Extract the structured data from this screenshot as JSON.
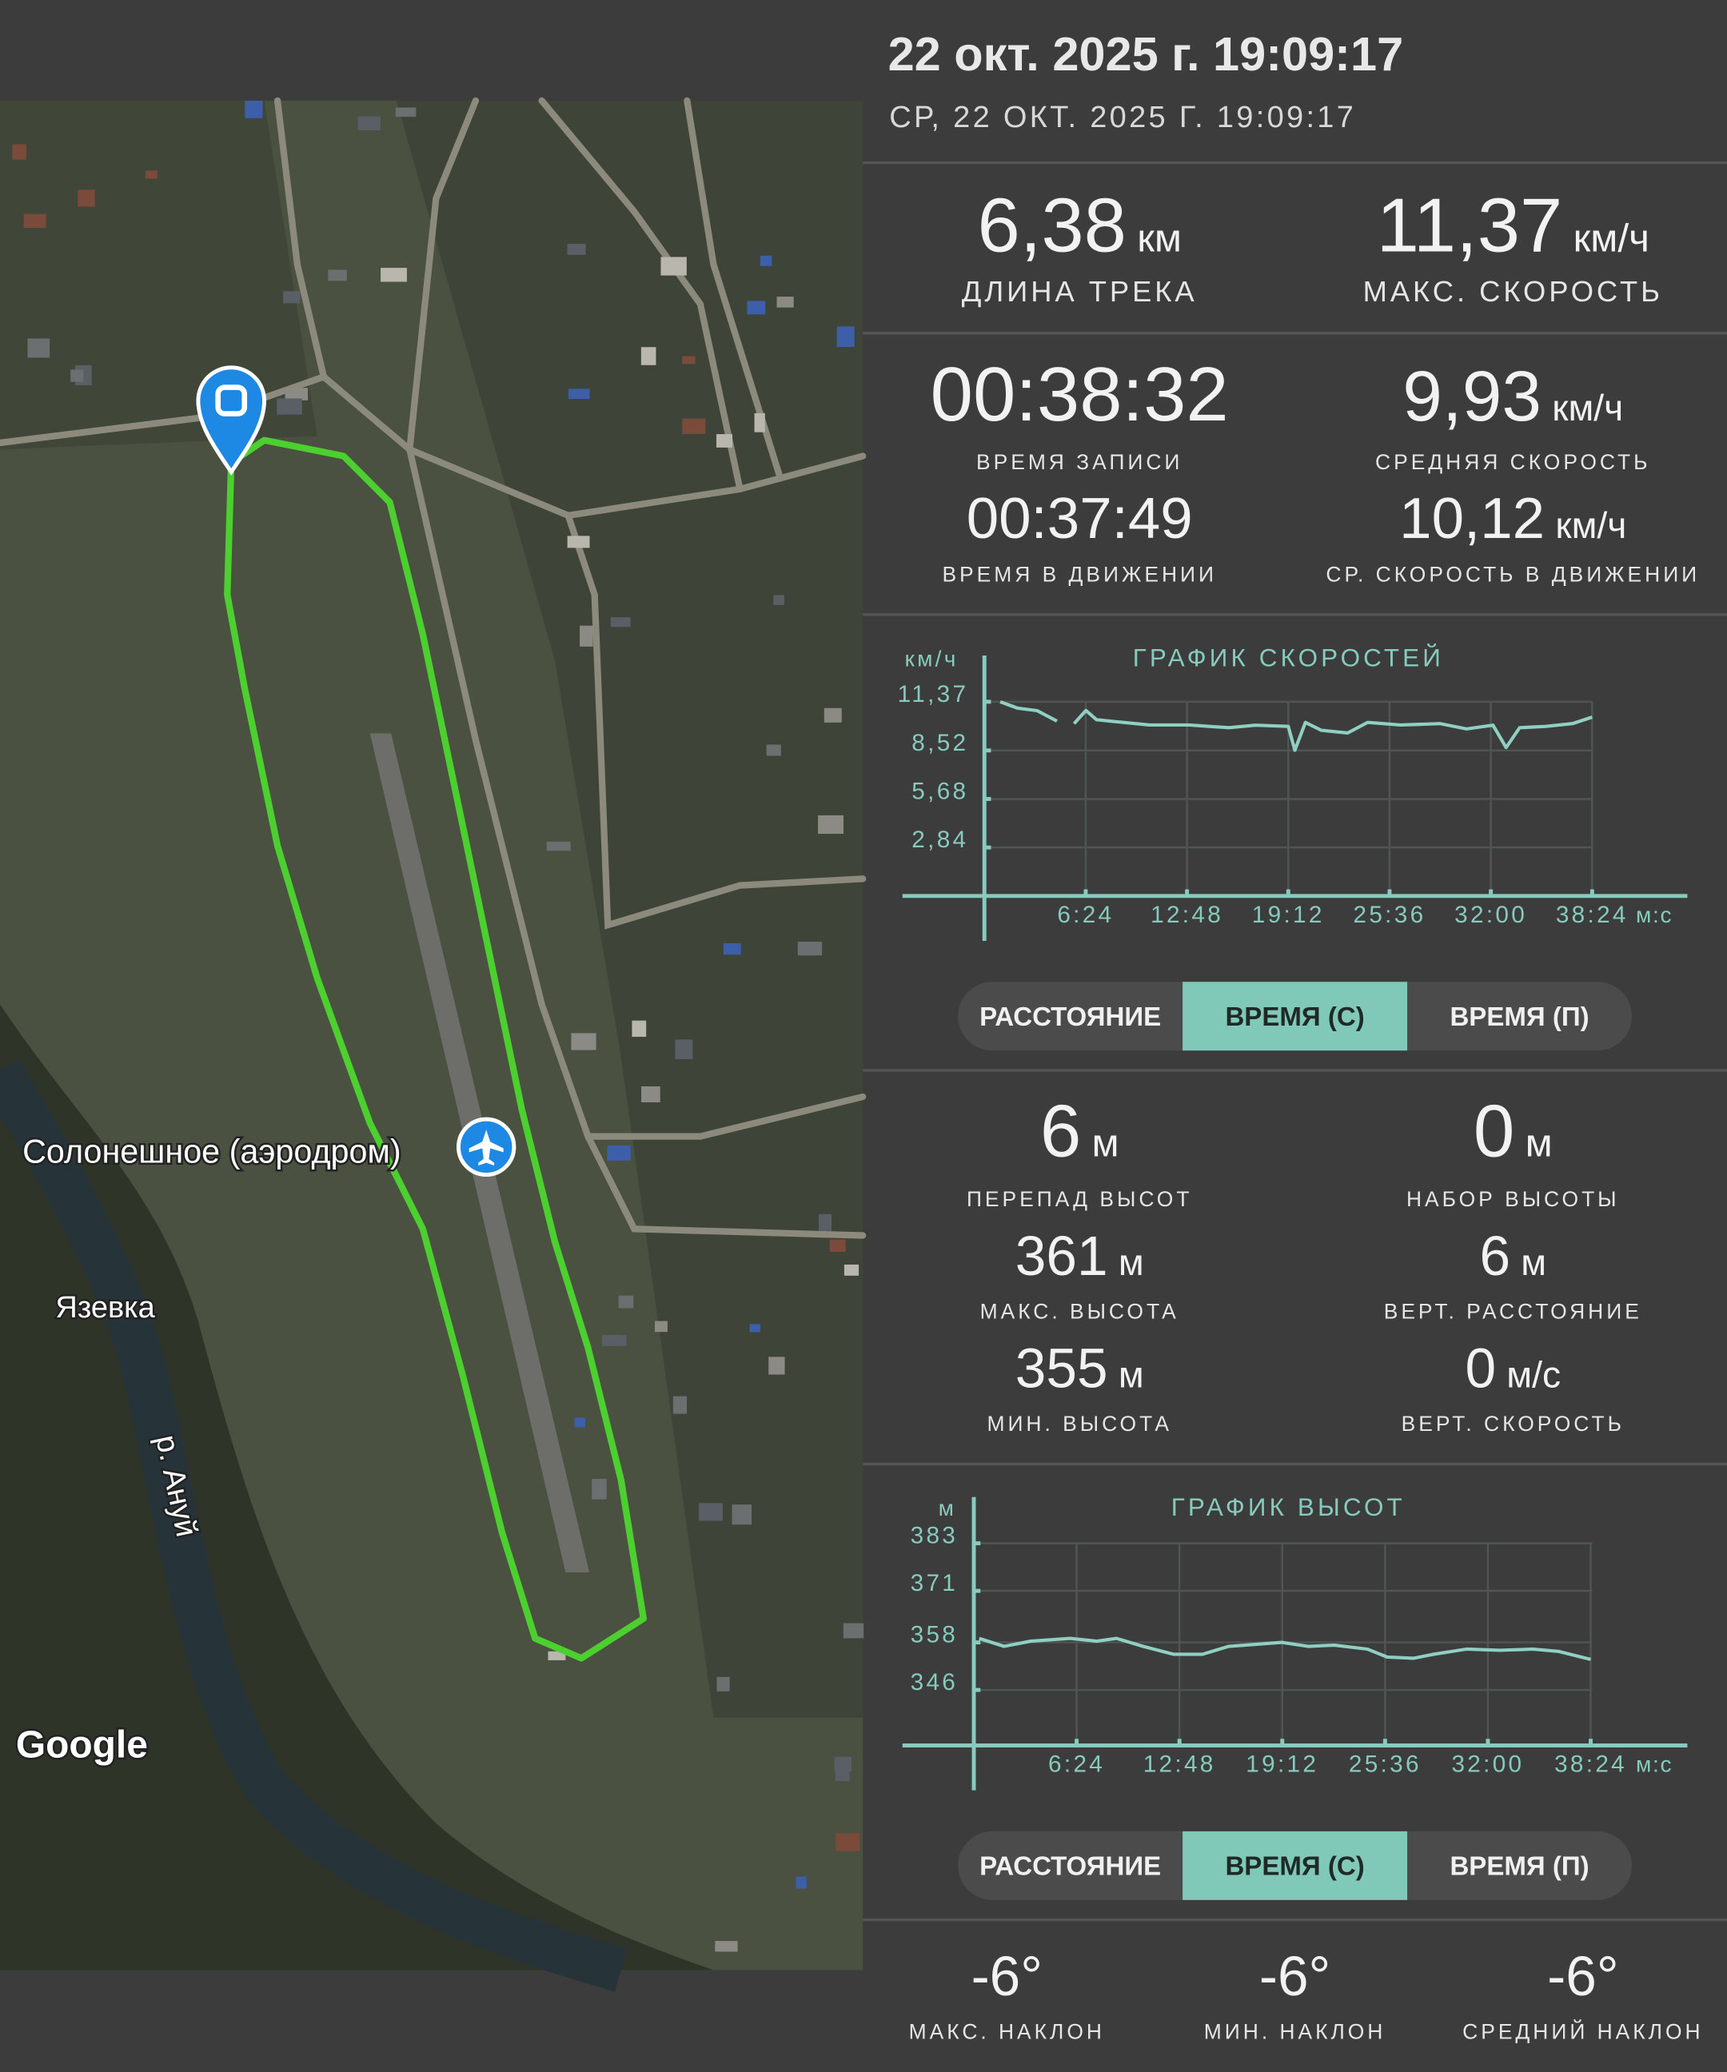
{
  "header": {
    "title": "22 окт. 2025 г. 19:09:17",
    "subtitle": "СР, 22 ОКТ. 2025 Г. 19:09:17"
  },
  "map": {
    "labels": {
      "airfield": "Солонешное (аэродром)",
      "village": "Язевка",
      "river": "р. Ануй",
      "attribution": "Google"
    }
  },
  "track_stats": [
    {
      "value": "6,38",
      "unit": "км",
      "label": "ДЛИНА ТРЕКА"
    },
    {
      "value": "11,37",
      "unit": "км/ч",
      "label": "МАКС. СКОРОСТЬ"
    },
    {
      "value": "00:38:32",
      "label": "ВРЕМЯ ЗАПИСИ"
    },
    {
      "value": "9,93",
      "unit": "км/ч",
      "label": "СРЕДНЯЯ СКОРОСТЬ"
    },
    {
      "value": "00:37:49",
      "label": "ВРЕМЯ В ДВИЖЕНИИ"
    },
    {
      "value": "10,12",
      "unit": "км/ч",
      "label": "СР. СКОРОСТЬ В ДВИЖЕНИИ"
    }
  ],
  "speed_chart": {
    "type": "line",
    "title": "ГРАФИК СКОРОСТЕЙ",
    "y_unit": "км/ч",
    "x_unit": "м:с",
    "color": "#8fd0c2",
    "x": [
      60,
      125,
      200,
      275,
      290,
      340,
      385,
      425,
      526,
      626,
      776,
      927,
      1027,
      1152,
      1177,
      1217,
      1277,
      1377,
      1453,
      1578,
      1728,
      1828,
      1928,
      1978,
      2029,
      2129,
      2229,
      2304
    ],
    "values": [
      11.37,
      11.0,
      10.85,
      10.24,
      null,
      10.09,
      10.86,
      10.32,
      10.16,
      10.01,
      10.01,
      9.85,
      10.0,
      9.93,
      8.53,
      10.16,
      9.7,
      9.54,
      10.16,
      10.01,
      10.09,
      9.78,
      10.0,
      8.69,
      9.85,
      9.93,
      10.09,
      10.47
    ],
    "xlim": [
      0,
      2665
    ],
    "ylim": [
      0,
      11.37
    ],
    "xticks": [
      {
        "value": 384,
        "label": "6:24"
      },
      {
        "value": 768,
        "label": "12:48"
      },
      {
        "value": 1152,
        "label": "19:12"
      },
      {
        "value": 1536,
        "label": "25:36"
      },
      {
        "value": 1920,
        "label": "32:00"
      },
      {
        "value": 2304,
        "label": "38:24"
      }
    ],
    "yticks": [
      {
        "value": 2.84,
        "label": "2,84"
      },
      {
        "value": 5.68,
        "label": "5,68"
      },
      {
        "value": 8.52,
        "label": "8,52"
      },
      {
        "value": 11.37,
        "label": "11,37"
      }
    ],
    "grid": true
  },
  "speed_tabs": {
    "options": [
      "РАССТОЯНИЕ",
      "ВРЕМЯ (С)",
      "ВРЕМЯ (П)"
    ],
    "selected": 1
  },
  "elevation_stats": [
    {
      "value": "6",
      "unit": "м",
      "label": "ПЕРЕПАД ВЫСОТ"
    },
    {
      "value": "0",
      "unit": "м",
      "label": "НАБОР ВЫСОТЫ"
    },
    {
      "value": "361",
      "unit": "м",
      "label": "МАКС. ВЫСОТА"
    },
    {
      "value": "6",
      "unit": "м",
      "label": "ВЕРТ. РАССТОЯНИЕ"
    },
    {
      "value": "355",
      "unit": "м",
      "label": "МИН. ВЫСОТА"
    },
    {
      "value": "0",
      "unit": "м/с",
      "label": "ВЕРТ. СКОРОСТЬ"
    }
  ],
  "elevation_chart": {
    "type": "line",
    "title": "ГРАФИК ВЫСОТ",
    "y_unit": "м",
    "x_unit": "м:с",
    "color": "#8fd0c2",
    "x": [
      20,
      113,
      212,
      360,
      459,
      533,
      632,
      745,
      854,
      952,
      1150,
      1248,
      1347,
      1470,
      1544,
      1643,
      1717,
      1840,
      1964,
      2087,
      2186,
      2304
    ],
    "values": [
      359,
      357,
      358.3,
      359,
      358.3,
      359,
      357,
      355,
      355,
      357,
      358,
      357,
      357.3,
      356.3,
      354.3,
      354,
      355,
      356.3,
      356,
      356.3,
      355.7,
      353.7
    ],
    "xlim": [
      0,
      2665
    ],
    "ylim": [
      332,
      383
    ],
    "xticks": [
      {
        "value": 384,
        "label": "6:24"
      },
      {
        "value": 768,
        "label": "12:48"
      },
      {
        "value": 1152,
        "label": "19:12"
      },
      {
        "value": 1536,
        "label": "25:36"
      },
      {
        "value": 1920,
        "label": "32:00"
      },
      {
        "value": 2304,
        "label": "38:24"
      }
    ],
    "yticks": [
      346,
      358,
      371,
      383
    ],
    "grid": true
  },
  "elevation_tabs": {
    "options": [
      "РАССТОЯНИЕ",
      "ВРЕМЯ (С)",
      "ВРЕМЯ (П)"
    ],
    "selected": 1
  },
  "slope_stats": [
    {
      "value": "-6°",
      "label": "МАКС. НАКЛОН"
    },
    {
      "value": "-6°",
      "label": "МИН. НАКЛОН"
    },
    {
      "value": "-6°",
      "label": "СРЕДНИЙ НАКЛОН"
    }
  ]
}
